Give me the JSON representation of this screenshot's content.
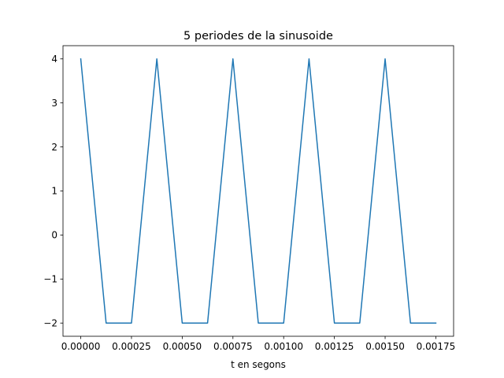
{
  "chart_data": {
    "type": "line",
    "title": "5 periodes de la sinusoide",
    "xlabel": "t en segons",
    "ylabel": "",
    "xlim": [
      -8.75e-05,
      0.0018375
    ],
    "ylim": [
      -2.3,
      4.3
    ],
    "grid": false,
    "x_ticks": [
      0,
      0.00025,
      0.0005,
      0.00075,
      0.001,
      0.00125,
      0.0015,
      0.00175
    ],
    "x_tick_labels": [
      "0.00000",
      "0.00025",
      "0.00050",
      "0.00075",
      "0.00100",
      "0.00125",
      "0.00150",
      "0.00175"
    ],
    "y_ticks": [
      -2,
      -1,
      0,
      1,
      2,
      3,
      4
    ],
    "y_tick_labels": [
      "−2",
      "−1",
      "0",
      "1",
      "2",
      "3",
      "4"
    ],
    "series": [
      {
        "color": "#1f77b4",
        "x": [
          0,
          0.000125,
          0.00025,
          0.000375,
          0.0005,
          0.000625,
          0.00075,
          0.000875,
          0.001,
          0.001125,
          0.00125,
          0.001375,
          0.0015,
          0.001625,
          0.00175
        ],
        "y": [
          4,
          -2,
          -2,
          4,
          -2,
          -2,
          4,
          -2,
          -2,
          4,
          -2,
          -2,
          4,
          -2,
          -2
        ]
      }
    ]
  }
}
